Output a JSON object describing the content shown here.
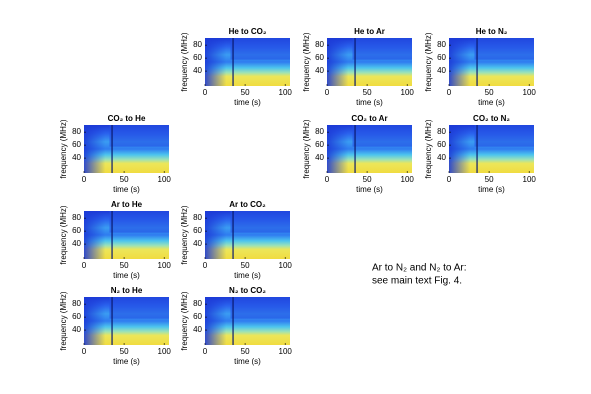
{
  "chart_data": {
    "type": "heatmap",
    "xlabel": "time (s)",
    "ylabel": "frequency (MHz)",
    "xlim": [
      0,
      106
    ],
    "ylim": [
      17,
      91
    ],
    "xticks": [
      0,
      50,
      100
    ],
    "yticks": [
      40,
      60,
      80
    ],
    "panels": [
      {
        "title": "He to CO₂"
      },
      {
        "title": "He to Ar"
      },
      {
        "title": "He to N₂"
      },
      {
        "title": "CO₂ to He"
      },
      {
        "title": "CO₂ to Ar"
      },
      {
        "title": "CO₂ to N₂"
      },
      {
        "title": "Ar to He"
      },
      {
        "title": "Ar to CO₂"
      },
      {
        "title": "N₂ to He"
      },
      {
        "title": "N₂ to CO₂"
      }
    ],
    "annotation": [
      "Ar to N₂ and N₂ to Ar:",
      "see main text Fig. 4."
    ]
  }
}
